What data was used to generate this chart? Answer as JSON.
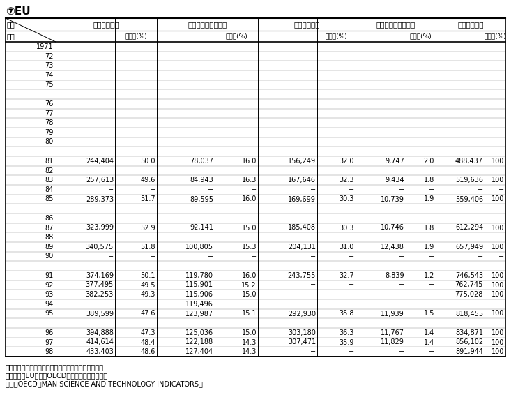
{
  "title": "⑦EU",
  "col_headers_row1": [
    "項目",
    "産　業（人）",
    "",
    "政府研究機関（人）",
    "",
    "大　学（人）",
    "",
    "民営研究機関（人）",
    "",
    "合　計（人）",
    ""
  ],
  "col_headers_row2": [
    "年度",
    "構成比(%)",
    "",
    "構成比(%)",
    "",
    "構成比(%)",
    "",
    "構成比(%)",
    "",
    "構成比(%)",
    ""
  ],
  "years": [
    "1971",
    "72",
    "73",
    "74",
    "75",
    "",
    "76",
    "77",
    "78",
    "79",
    "80",
    "",
    "81",
    "82",
    "83",
    "84",
    "85",
    "",
    "86",
    "87",
    "88",
    "89",
    "90",
    "",
    "91",
    "92",
    "93",
    "94",
    "95",
    "",
    "96",
    "97",
    "98"
  ],
  "sangyo": [
    "",
    "",
    "",
    "",
    "",
    "",
    "",
    "",
    "",
    "",
    "",
    "",
    "244,404",
    "−",
    "257,613",
    "−",
    "289,373",
    "",
    "−",
    "323,999",
    "−",
    "340,575",
    "−",
    "",
    "374,169",
    "377,495",
    "382,253",
    "−",
    "389,599",
    "",
    "394,888",
    "414,614",
    "433,403"
  ],
  "sangyo_pct": [
    "",
    "",
    "",
    "",
    "",
    "",
    "",
    "",
    "",
    "",
    "",
    "",
    "50.0",
    "−",
    "49.6",
    "−",
    "51.7",
    "",
    "−",
    "52.9",
    "−",
    "51.8",
    "−",
    "",
    "50.1",
    "49.5",
    "49.3",
    "−",
    "47.6",
    "",
    "47.3",
    "48.4",
    "48.6"
  ],
  "seifu": [
    "",
    "",
    "",
    "",
    "",
    "",
    "",
    "",
    "",
    "",
    "",
    "",
    "78,037",
    "−",
    "84,943",
    "−",
    "89,595",
    "",
    "−",
    "92,141",
    "−",
    "100,805",
    "−",
    "",
    "119,780",
    "115,901",
    "115,906",
    "119,496",
    "123,987",
    "",
    "125,036",
    "122,188",
    "127,404"
  ],
  "seifu_pct": [
    "",
    "",
    "",
    "",
    "",
    "",
    "",
    "",
    "",
    "",
    "",
    "",
    "16.0",
    "−",
    "16.3",
    "−",
    "16.0",
    "",
    "−",
    "15.0",
    "−",
    "15.3",
    "−",
    "",
    "16.0",
    "15.2",
    "15.0",
    "−",
    "15.1",
    "",
    "15.0",
    "14.3",
    "14.3"
  ],
  "daigaku": [
    "",
    "",
    "",
    "",
    "",
    "",
    "",
    "",
    "",
    "",
    "",
    "",
    "156,249",
    "−",
    "167,646",
    "−",
    "169,699",
    "",
    "−",
    "185,408",
    "−",
    "204,131",
    "−",
    "",
    "243,755",
    "−",
    "−",
    "−",
    "292,930",
    "",
    "303,180",
    "307,471",
    "−"
  ],
  "daigaku_pct": [
    "",
    "",
    "",
    "",
    "",
    "",
    "",
    "",
    "",
    "",
    "",
    "",
    "32.0",
    "−",
    "32.3",
    "−",
    "30.3",
    "",
    "−",
    "30.3",
    "−",
    "31.0",
    "−",
    "",
    "32.7",
    "−",
    "−",
    "−",
    "35.8",
    "",
    "36.3",
    "35.9",
    "−"
  ],
  "minei": [
    "",
    "",
    "",
    "",
    "",
    "",
    "",
    "",
    "",
    "",
    "",
    "",
    "9,747",
    "−",
    "9,434",
    "−",
    "10,739",
    "",
    "−",
    "10,746",
    "−",
    "12,438",
    "−",
    "",
    "8,839",
    "−",
    "−",
    "−",
    "11,939",
    "",
    "11,767",
    "11,829",
    "−"
  ],
  "minei_pct": [
    "",
    "",
    "",
    "",
    "",
    "",
    "",
    "",
    "",
    "",
    "",
    "",
    "2.0",
    "−",
    "1.8",
    "−",
    "1.9",
    "",
    "−",
    "1.8",
    "−",
    "1.9",
    "−",
    "",
    "1.2",
    "−",
    "−",
    "−",
    "1.5",
    "",
    "1.4",
    "1.4",
    "−"
  ],
  "gokei": [
    "",
    "",
    "",
    "",
    "",
    "",
    "",
    "",
    "",
    "",
    "",
    "",
    "488,437",
    "−",
    "519,636",
    "−",
    "559,406",
    "",
    "−",
    "612,294",
    "−",
    "657,949",
    "−",
    "",
    "746,543",
    "762,745",
    "775,028",
    "−",
    "818,455",
    "",
    "834,871",
    "856,102",
    "891,944"
  ],
  "gokei_pct": [
    "",
    "",
    "",
    "",
    "",
    "",
    "",
    "",
    "",
    "",
    "",
    "",
    "100",
    "−",
    "100",
    "−",
    "100",
    "",
    "−",
    "100",
    "−",
    "100",
    "−",
    "",
    "100",
    "100",
    "100",
    "−",
    "100",
    "",
    "100",
    "100",
    "100"
  ],
  "note1": "注）　１．自然科学と人文・社会科学の合計である。",
  "note2": "　　　２．EUの値はOECDの推計した値である。",
  "source": "資料：OECD『MAN SCIENCE AND TECHNOLOGY INDICATORS』"
}
